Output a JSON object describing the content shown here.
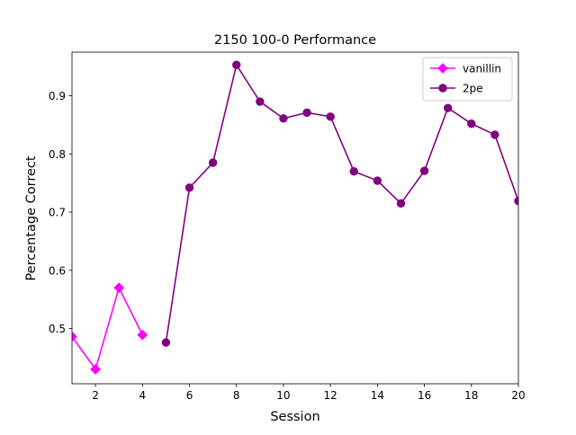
{
  "chart_data": {
    "type": "line",
    "title": "2150 100-0 Performance",
    "xlabel": "Session",
    "ylabel": "Percentage Correct",
    "xlim": [
      1,
      20
    ],
    "ylim": [
      0.405,
      0.975
    ],
    "xticks": [
      2,
      4,
      6,
      8,
      10,
      12,
      14,
      16,
      18,
      20
    ],
    "yticks": [
      0.5,
      0.6,
      0.7,
      0.8,
      0.9
    ],
    "grid": false,
    "legend_position": "top-right",
    "series": [
      {
        "name": "vanillin",
        "color": "#ff00ff",
        "marker": "diamond",
        "x": [
          1,
          2,
          3,
          4
        ],
        "y": [
          0.486,
          0.43,
          0.57,
          0.489
        ]
      },
      {
        "name": "2pe",
        "color": "#800080",
        "marker": "circle",
        "x": [
          5,
          6,
          7,
          8,
          9,
          10,
          11,
          12,
          13,
          14,
          15,
          16,
          17,
          18,
          19,
          20
        ],
        "y": [
          0.476,
          0.742,
          0.785,
          0.953,
          0.89,
          0.861,
          0.871,
          0.864,
          0.77,
          0.754,
          0.715,
          0.771,
          0.879,
          0.852,
          0.833,
          0.719
        ]
      }
    ]
  }
}
